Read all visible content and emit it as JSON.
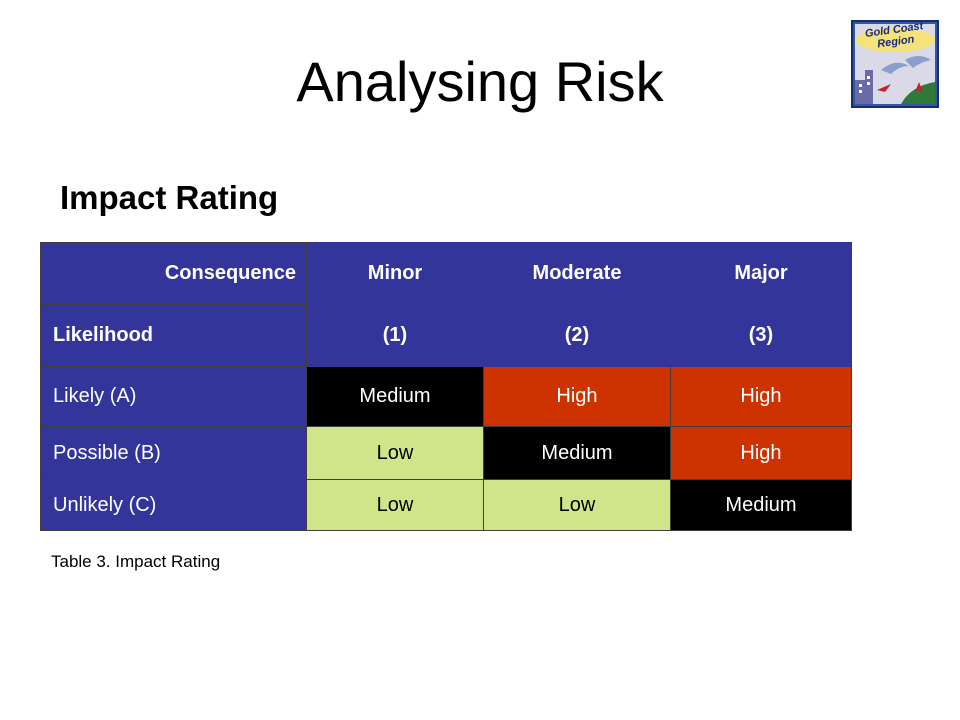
{
  "slide": {
    "title": "Analysing Risk",
    "subtitle": "Impact Rating",
    "caption": "Table 3. Impact Rating",
    "logo_text": "Gold Coast Region"
  },
  "table": {
    "corner_top": "Consequence",
    "corner_bottom": "Likelihood",
    "columns": [
      {
        "name": "Minor",
        "code": "(1)"
      },
      {
        "name": "Moderate",
        "code": "(2)"
      },
      {
        "name": "Major",
        "code": "(3)"
      }
    ],
    "rows": [
      {
        "label": "Likely (A)",
        "cells": [
          "Medium",
          "High",
          "High"
        ]
      },
      {
        "label": "Possible (B)",
        "cells": [
          "Low",
          "Medium",
          "High"
        ]
      },
      {
        "label": "Unlikely (C)",
        "cells": [
          "Low",
          "Low",
          "Medium"
        ]
      }
    ]
  },
  "colors": {
    "header": "#34359a",
    "low": "#cfe58a",
    "medium": "#000000",
    "high": "#cc3300"
  }
}
